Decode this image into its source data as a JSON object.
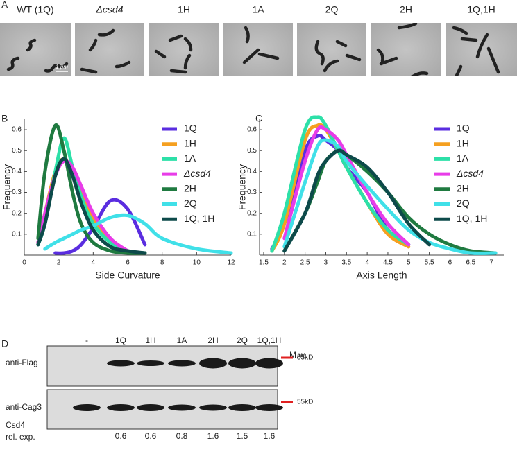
{
  "panel_labels": [
    "A",
    "B",
    "C",
    "D"
  ],
  "micrographs": {
    "strains": [
      "WT (1Q)",
      "Δcsd4",
      "1H",
      "1A",
      "2Q",
      "2H",
      "1Q,1H"
    ],
    "scale_bar": "1 μm"
  },
  "chart_data": [
    {
      "type": "line",
      "x_label": "Side Curvature",
      "y_label": "Frequency",
      "x": [
        0.8,
        1.2,
        1.8,
        2.3,
        2.8,
        3.3,
        4,
        5,
        6,
        7,
        8,
        10,
        12
      ],
      "xlim": [
        0,
        12
      ],
      "xticks": [
        0,
        2,
        4,
        6,
        8,
        10,
        12
      ],
      "ylim": [
        0,
        0.65
      ],
      "yticks": [
        0.1,
        0.2,
        0.3,
        0.4,
        0.5,
        0.6
      ],
      "legend": "upper right",
      "series": [
        {
          "name": "1Q",
          "color": "#5a2de0",
          "values": [
            null,
            null,
            0.01,
            0.01,
            0.02,
            0.05,
            0.13,
            0.26,
            0.22,
            0.05,
            null,
            null,
            null
          ]
        },
        {
          "name": "1H",
          "color": "#f5a020",
          "values": [
            0.06,
            0.2,
            0.4,
            0.46,
            0.4,
            0.3,
            0.17,
            0.07,
            0.02,
            0.01,
            null,
            null,
            null
          ]
        },
        {
          "name": "1A",
          "color": "#2de0a8",
          "values": [
            0.05,
            0.15,
            0.4,
            0.56,
            0.42,
            0.28,
            0.15,
            0.06,
            0.02,
            0.01,
            null,
            null,
            null
          ]
        },
        {
          "name": "Δcsd4",
          "color": "#e83ce8",
          "values": [
            0.06,
            0.2,
            0.38,
            0.45,
            0.42,
            0.33,
            0.2,
            0.08,
            0.02,
            null,
            null,
            null,
            null
          ]
        },
        {
          "name": "2H",
          "color": "#1f7a40",
          "values": [
            0.08,
            0.4,
            0.62,
            0.5,
            0.3,
            0.15,
            0.06,
            0.02,
            0.01,
            0.01,
            null,
            null,
            null
          ]
        },
        {
          "name": "2Q",
          "color": "#40e0e8",
          "values": [
            null,
            0.03,
            0.06,
            0.08,
            0.1,
            0.12,
            0.14,
            0.18,
            0.19,
            0.15,
            0.08,
            0.03,
            0.01
          ]
        },
        {
          "name": "1Q, 1H",
          "color": "#0d4a4a",
          "values": [
            0.05,
            0.15,
            0.38,
            0.46,
            0.38,
            0.25,
            0.12,
            0.04,
            0.02,
            0.01,
            null,
            null,
            null
          ]
        }
      ]
    },
    {
      "type": "line",
      "x_label": "Axis Length",
      "y_label": "Frequency",
      "x": [
        1.7,
        2,
        2.5,
        2.8,
        3,
        3.3,
        3.5,
        4,
        4.5,
        5,
        5.5,
        6,
        6.5,
        7.1
      ],
      "xlim": [
        1.4,
        7.3
      ],
      "xticks": [
        1.5,
        2,
        2.5,
        3,
        3.5,
        4,
        4.5,
        5,
        5.5,
        6,
        6.5,
        7
      ],
      "ylim": [
        0,
        0.65
      ],
      "yticks": [
        0.1,
        0.2,
        0.3,
        0.4,
        0.5,
        0.6
      ],
      "legend": "upper right",
      "series": [
        {
          "name": "1Q",
          "color": "#5a2de0",
          "values": [
            0.03,
            0.15,
            0.5,
            0.57,
            0.55,
            0.5,
            0.42,
            0.3,
            0.12,
            0.05,
            null,
            null,
            null,
            null
          ]
        },
        {
          "name": "1H",
          "color": "#f5a020",
          "values": [
            0.02,
            0.15,
            0.55,
            0.62,
            0.6,
            0.5,
            0.42,
            0.25,
            0.1,
            0.04,
            null,
            null,
            null,
            null
          ]
        },
        {
          "name": "1A",
          "color": "#2de0a8",
          "values": [
            0.02,
            0.2,
            0.6,
            0.66,
            0.62,
            0.5,
            0.42,
            0.25,
            0.12,
            0.05,
            null,
            null,
            null,
            null
          ]
        },
        {
          "name": "Δcsd4",
          "color": "#e83ce8",
          "values": [
            null,
            0.08,
            0.45,
            0.6,
            0.6,
            0.55,
            0.48,
            0.3,
            0.15,
            0.05,
            null,
            null,
            null,
            null
          ]
        },
        {
          "name": "2H",
          "color": "#1f7a40",
          "values": [
            null,
            0.02,
            0.2,
            0.35,
            0.45,
            0.5,
            0.48,
            0.4,
            0.3,
            0.18,
            0.1,
            0.05,
            0.02,
            0.01
          ]
        },
        {
          "name": "2Q",
          "color": "#40e0e8",
          "values": [
            null,
            0.04,
            0.35,
            0.52,
            0.55,
            0.52,
            0.45,
            0.33,
            0.22,
            0.12,
            0.06,
            0.03,
            0.01,
            0.01
          ]
        },
        {
          "name": "1Q, 1H",
          "color": "#0d4a4a",
          "values": [
            null,
            0.02,
            0.2,
            0.38,
            0.45,
            0.5,
            0.48,
            0.42,
            0.3,
            0.15,
            0.05,
            null,
            null,
            null
          ]
        }
      ]
    }
  ],
  "blot": {
    "lanes": [
      "-",
      "1Q",
      "1H",
      "1A",
      "2H",
      "2Q",
      "1Q,1H"
    ],
    "mw_header": "M.w",
    "rows": [
      {
        "antibody": "anti-Flag",
        "marker": "55kD"
      },
      {
        "antibody": "anti-Cag3",
        "marker": "55kD"
      }
    ],
    "quant_label": [
      "Csd4",
      "rel. exp."
    ],
    "quant_values": [
      0.6,
      0.6,
      0.8,
      1.6,
      1.5,
      1.6
    ]
  }
}
